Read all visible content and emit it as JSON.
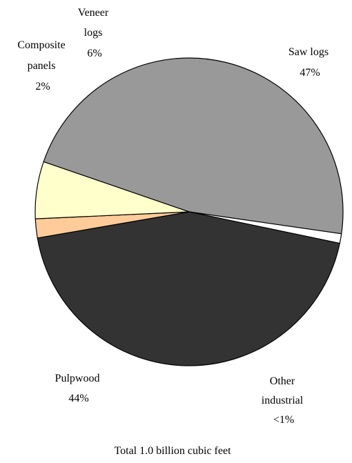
{
  "chart_data": {
    "type": "pie",
    "caption": "Total 1.0 billion cubic feet",
    "slices": [
      {
        "key": "saw",
        "label_lines": [
          "Saw logs",
          "47%"
        ],
        "value": 47,
        "color": "#999999"
      },
      {
        "key": "other",
        "label_lines": [
          "Other",
          "industrial",
          "<1%"
        ],
        "value": 1,
        "color": "#ffffff"
      },
      {
        "key": "pulp",
        "label_lines": [
          "Pulpwood",
          "44%"
        ],
        "value": 44,
        "color": "#333333"
      },
      {
        "key": "composite",
        "label_lines": [
          "Composite",
          "panels",
          "2%"
        ],
        "value": 2,
        "color": "#ffcc99"
      },
      {
        "key": "veneer",
        "label_lines": [
          "Veneer",
          "logs",
          "6%"
        ],
        "value": 6,
        "color": "#ffffcc"
      }
    ]
  }
}
